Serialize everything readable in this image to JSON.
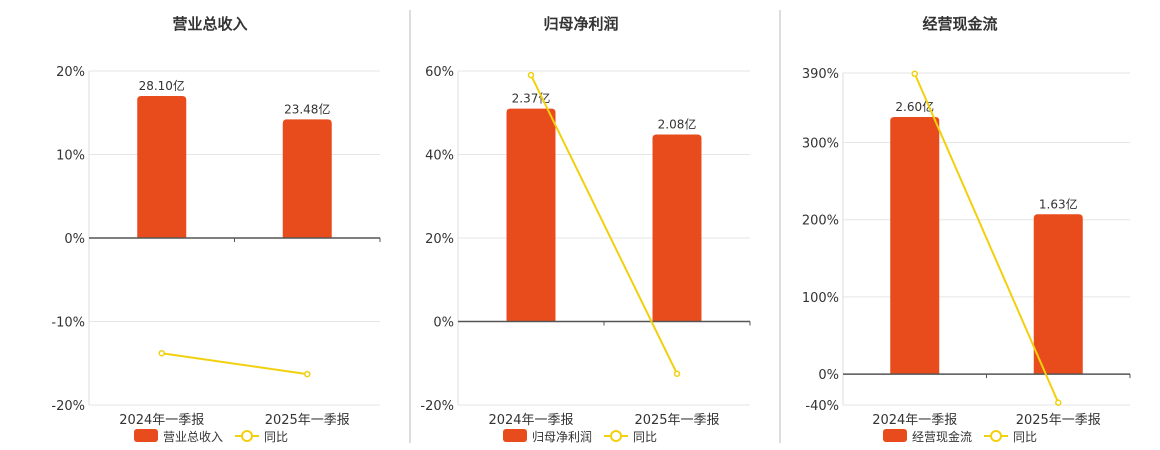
{
  "colors": {
    "bar": "#e84c1c",
    "line": "#f2d00f",
    "axis": "#555555",
    "divider": "#bbbbbb"
  },
  "legend": {
    "line_name": "同比"
  },
  "chart_data": [
    {
      "type": "bar",
      "title": "营业总收入",
      "categories": [
        "2024年一季报",
        "2025年一季报"
      ],
      "series": [
        {
          "name": "营业总收入",
          "type": "bar",
          "data_labels": [
            "28.10亿",
            "23.48亿"
          ],
          "pct_values": [
            17,
            14.2
          ]
        },
        {
          "name": "同比",
          "type": "line",
          "values": [
            -13.8,
            -16.3
          ]
        }
      ],
      "ylim": [
        -20,
        20
      ],
      "yticks": [
        20,
        10,
        0,
        -10,
        -20
      ],
      "ytick_labels": [
        "20%",
        "10%",
        "0%",
        "-10%",
        "-20%"
      ]
    },
    {
      "type": "bar",
      "title": "归母净利润",
      "categories": [
        "2024年一季报",
        "2025年一季报"
      ],
      "series": [
        {
          "name": "归母净利润",
          "type": "bar",
          "data_labels": [
            "2.37亿",
            "2.08亿"
          ],
          "pct_values": [
            51,
            44.8
          ]
        },
        {
          "name": "同比",
          "type": "line",
          "values": [
            59,
            -12.5
          ]
        }
      ],
      "ylim": [
        -20,
        60
      ],
      "yticks": [
        60,
        40,
        20,
        0,
        -20
      ],
      "ytick_labels": [
        "60%",
        "40%",
        "20%",
        "0%",
        "-20%"
      ]
    },
    {
      "type": "bar",
      "title": "经营现金流",
      "categories": [
        "2024年一季报",
        "2025年一季报"
      ],
      "series": [
        {
          "name": "经营现金流",
          "type": "bar",
          "data_labels": [
            "2.60亿",
            "1.63亿"
          ],
          "pct_values": [
            333,
            207
          ]
        },
        {
          "name": "同比",
          "type": "line",
          "values": [
            389,
            -37
          ]
        }
      ],
      "ylim": [
        -40,
        390
      ],
      "yticks": [
        390,
        300,
        200,
        100,
        0,
        -40
      ],
      "ytick_labels": [
        "390%",
        "300%",
        "200%",
        "100%",
        "0%",
        "-40%"
      ]
    }
  ]
}
